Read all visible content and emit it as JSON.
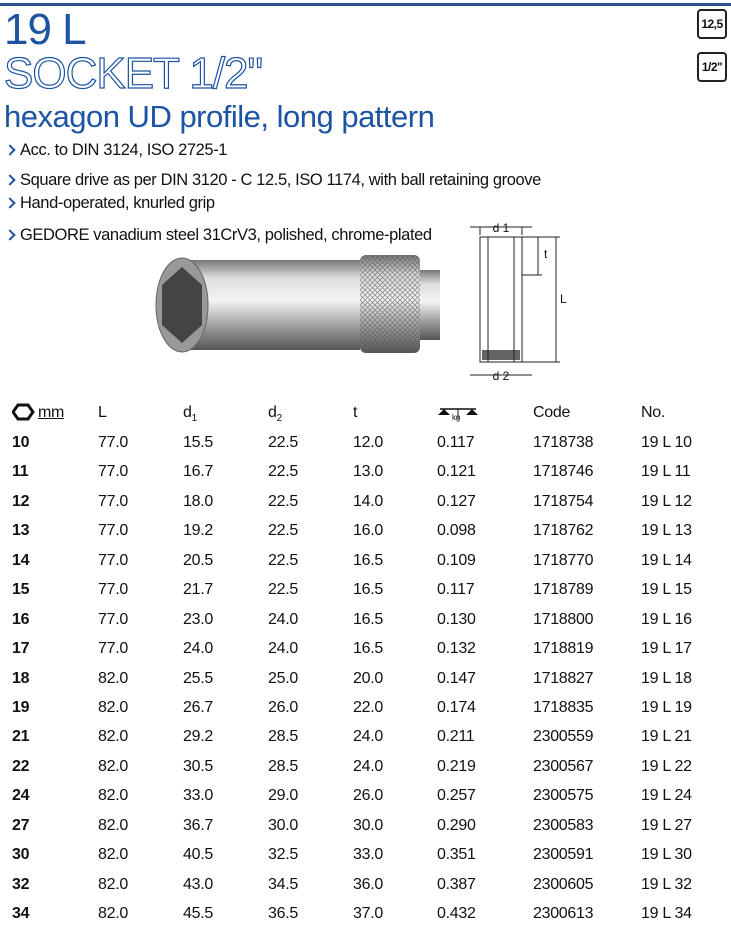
{
  "header": {
    "title": "19 L",
    "product": "SOCKET 1/2\"",
    "subtitle": "hexagon UD profile, long pattern",
    "badges": [
      "12,5",
      "1/2\""
    ]
  },
  "features": [
    "Acc. to DIN 3124, ISO 2725-1",
    "Square drive as per DIN 3120 - C 12.5, ISO 1174, with ball retaining groove",
    "Hand-operated, knurled grip",
    "GEDORE vanadium steel 31CrV3, polished, chrome-plated"
  ],
  "diagram": {
    "labels": [
      "d 1",
      "t",
      "L",
      "d 2"
    ]
  },
  "table": {
    "columns": [
      {
        "text": "mm"
      },
      {
        "text": "L"
      },
      {
        "text": "d",
        "sub": "1"
      },
      {
        "text": "d",
        "sub": "2"
      },
      {
        "text": "t"
      },
      {
        "text": "kg"
      },
      {
        "text": "Code"
      },
      {
        "text": "No."
      }
    ],
    "rows": [
      [
        "10",
        "77.0",
        "15.5",
        "22.5",
        "12.0",
        "0.117",
        "1718738",
        "19 L 10"
      ],
      [
        "11",
        "77.0",
        "16.7",
        "22.5",
        "13.0",
        "0.121",
        "1718746",
        "19 L 11"
      ],
      [
        "12",
        "77.0",
        "18.0",
        "22.5",
        "14.0",
        "0.127",
        "1718754",
        "19 L 12"
      ],
      [
        "13",
        "77.0",
        "19.2",
        "22.5",
        "16.0",
        "0.098",
        "1718762",
        "19 L 13"
      ],
      [
        "14",
        "77.0",
        "20.5",
        "22.5",
        "16.5",
        "0.109",
        "1718770",
        "19 L 14"
      ],
      [
        "15",
        "77.0",
        "21.7",
        "22.5",
        "16.5",
        "0.117",
        "1718789",
        "19 L 15"
      ],
      [
        "16",
        "77.0",
        "23.0",
        "24.0",
        "16.5",
        "0.130",
        "1718800",
        "19 L 16"
      ],
      [
        "17",
        "77.0",
        "24.0",
        "24.0",
        "16.5",
        "0.132",
        "1718819",
        "19 L 17"
      ],
      [
        "18",
        "82.0",
        "25.5",
        "25.0",
        "20.0",
        "0.147",
        "1718827",
        "19 L 18"
      ],
      [
        "19",
        "82.0",
        "26.7",
        "26.0",
        "22.0",
        "0.174",
        "1718835",
        "19 L 19"
      ],
      [
        "21",
        "82.0",
        "29.2",
        "28.5",
        "24.0",
        "0.211",
        "2300559",
        "19 L 21"
      ],
      [
        "22",
        "82.0",
        "30.5",
        "28.5",
        "24.0",
        "0.219",
        "2300567",
        "19 L 22"
      ],
      [
        "24",
        "82.0",
        "33.0",
        "29.0",
        "26.0",
        "0.257",
        "2300575",
        "19 L 24"
      ],
      [
        "27",
        "82.0",
        "36.7",
        "30.0",
        "30.0",
        "0.290",
        "2300583",
        "19 L 27"
      ],
      [
        "30",
        "82.0",
        "40.5",
        "32.5",
        "33.0",
        "0.351",
        "2300591",
        "19 L 30"
      ],
      [
        "32",
        "82.0",
        "43.0",
        "34.5",
        "36.0",
        "0.387",
        "2300605",
        "19 L 32"
      ],
      [
        "34",
        "82.0",
        "45.5",
        "36.5",
        "37.0",
        "0.432",
        "2300613",
        "19 L 34"
      ]
    ]
  }
}
